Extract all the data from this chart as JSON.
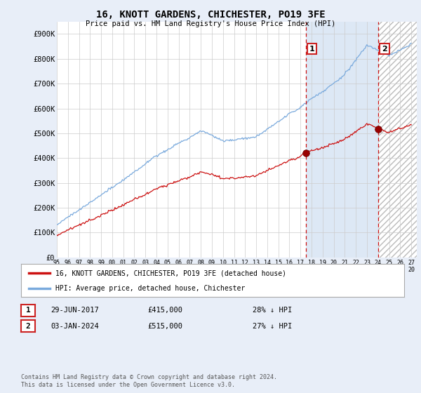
{
  "title": "16, KNOTT GARDENS, CHICHESTER, PO19 3FE",
  "subtitle": "Price paid vs. HM Land Registry's House Price Index (HPI)",
  "hpi_color": "#7aaadd",
  "price_color": "#cc1111",
  "vline_color": "#cc1111",
  "highlight_color": "#dde8f5",
  "hatch_color": "#bbbbbb",
  "ylim": [
    0,
    950000
  ],
  "yticks": [
    0,
    100000,
    200000,
    300000,
    400000,
    500000,
    600000,
    700000,
    800000,
    900000
  ],
  "ytick_labels": [
    "£0",
    "£100K",
    "£200K",
    "£300K",
    "£400K",
    "£500K",
    "£600K",
    "£700K",
    "£800K",
    "£900K"
  ],
  "t_sale1": 2017.5,
  "t_sale2": 2024.04,
  "price_sale1": 415000,
  "price_sale2": 515000,
  "legend_line1": "16, KNOTT GARDENS, CHICHESTER, PO19 3FE (detached house)",
  "legend_line2": "HPI: Average price, detached house, Chichester",
  "footnote": "Contains HM Land Registry data © Crown copyright and database right 2024.\nThis data is licensed under the Open Government Licence v3.0.",
  "background_color": "#e8eef8",
  "plot_bg_color": "#ffffff"
}
